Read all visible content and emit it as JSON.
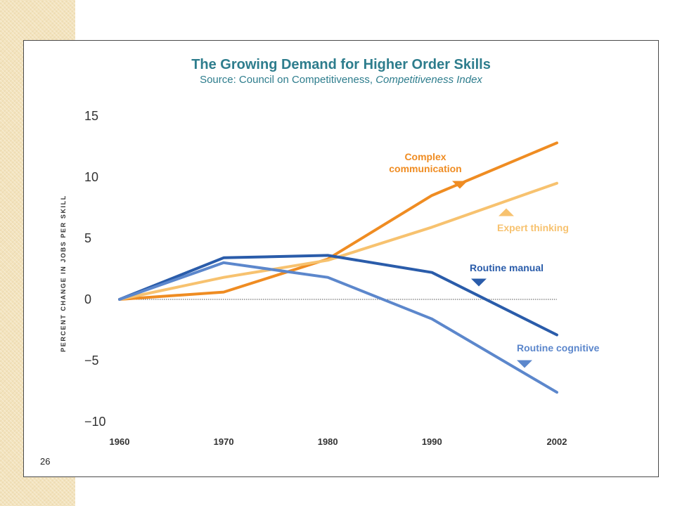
{
  "slide": {
    "title": "The Growing Demand for Higher Order Skills",
    "subtitle_prefix": "Source: Council on Competitiveness, ",
    "subtitle_italic": "Competitiveness Index",
    "page_number": "26"
  },
  "chart_data": {
    "type": "line",
    "title": "The Growing Demand for Higher Order Skills",
    "ylabel": "PERCENT CHANGE IN JOBS PER SKILL",
    "xlabel": "",
    "x": [
      1960,
      1970,
      1980,
      1990,
      2002
    ],
    "x_tick_labels": [
      "1960",
      "1970",
      "1980",
      "1990",
      "2002"
    ],
    "ylim": [
      -10,
      15
    ],
    "y_ticks": [
      15,
      10,
      5,
      0,
      -5,
      -10
    ],
    "y_tick_labels": [
      "15",
      "10",
      "5",
      "0",
      "−5",
      "−10"
    ],
    "grid": false,
    "baseline": 0,
    "series": [
      {
        "name": "Complex communication",
        "name_lines": [
          "Complex",
          "communication"
        ],
        "color": "#ef8c22",
        "values": [
          0,
          0.6,
          3.3,
          8.5,
          12.8
        ]
      },
      {
        "name": "Expert thinking",
        "name_lines": [
          "Expert thinking"
        ],
        "color": "#f7c26f",
        "values": [
          0,
          1.8,
          3.2,
          5.9,
          9.5
        ]
      },
      {
        "name": "Routine manual",
        "name_lines": [
          "Routine manual"
        ],
        "color": "#2a5caa",
        "values": [
          0,
          3.4,
          3.6,
          2.2,
          -2.9
        ]
      },
      {
        "name": "Routine cognitive",
        "name_lines": [
          "Routine cognitive"
        ],
        "color": "#5c87cc",
        "values": [
          0,
          3.0,
          1.8,
          -1.6,
          -7.6
        ]
      }
    ]
  }
}
